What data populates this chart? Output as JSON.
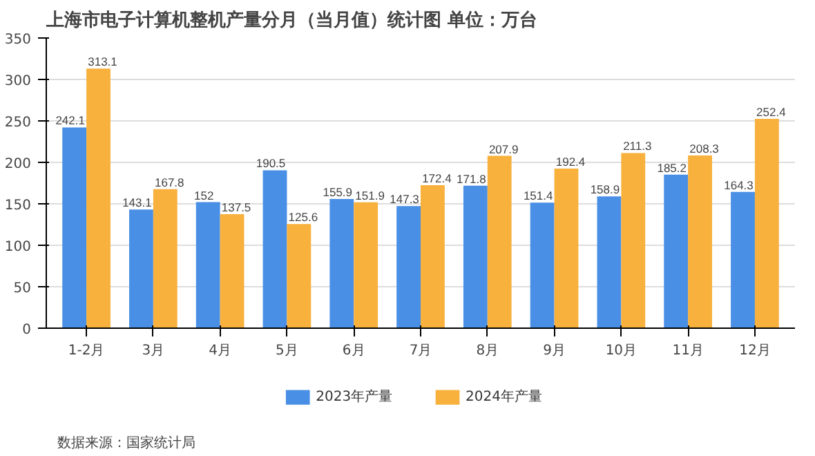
{
  "chart_data": {
    "type": "bar",
    "title": "上海市电子计算机整机产量分月（当月值）统计图 单位：万台",
    "categories": [
      "1-2月",
      "3月",
      "4月",
      "5月",
      "6月",
      "7月",
      "8月",
      "9月",
      "10月",
      "11月",
      "12月"
    ],
    "series": [
      {
        "name": "2023年产量",
        "color": "#4a8fe6",
        "values": [
          242.1,
          143.1,
          152,
          190.5,
          155.9,
          147.3,
          171.8,
          151.4,
          158.9,
          185.2,
          164.3
        ]
      },
      {
        "name": "2024年产量",
        "color": "#f8b13d",
        "values": [
          313.1,
          167.8,
          137.5,
          125.6,
          151.9,
          172.4,
          207.9,
          192.4,
          211.3,
          208.3,
          252.4
        ]
      }
    ],
    "ylim": [
      0,
      350
    ],
    "yticks": [
      0,
      50,
      100,
      150,
      200,
      250,
      300,
      350
    ],
    "grid": "y",
    "legend": "bottom",
    "data_labels": true,
    "annotations": [
      "数据来源：国家统计局"
    ]
  }
}
